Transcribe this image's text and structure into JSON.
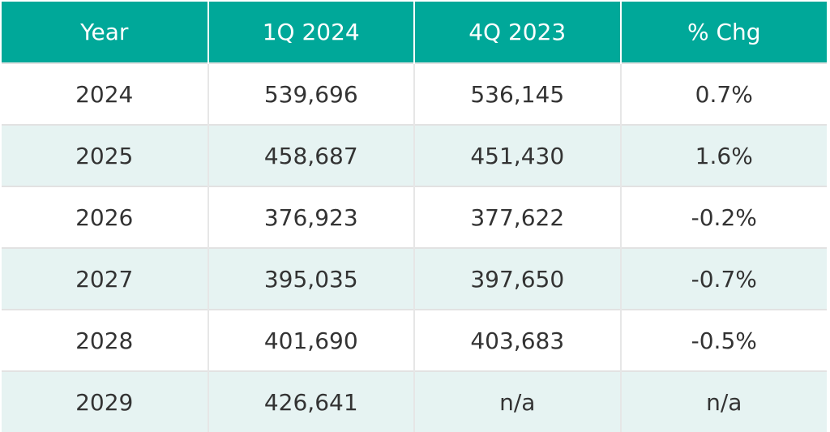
{
  "table": {
    "header": [
      "Year",
      "1Q 2024",
      "4Q 2023",
      "% Chg"
    ],
    "rows": [
      [
        "2024",
        "539,696",
        "536,145",
        "0.7%"
      ],
      [
        "2025",
        "458,687",
        "451,430",
        "1.6%"
      ],
      [
        "2026",
        "376,923",
        "377,622",
        "-0.2%"
      ],
      [
        "2027",
        "395,035",
        "397,650",
        "-0.7%"
      ],
      [
        "2028",
        "401,690",
        "403,683",
        "-0.5%"
      ],
      [
        "2029",
        "426,641",
        "n/a",
        "n/a"
      ]
    ]
  }
}
